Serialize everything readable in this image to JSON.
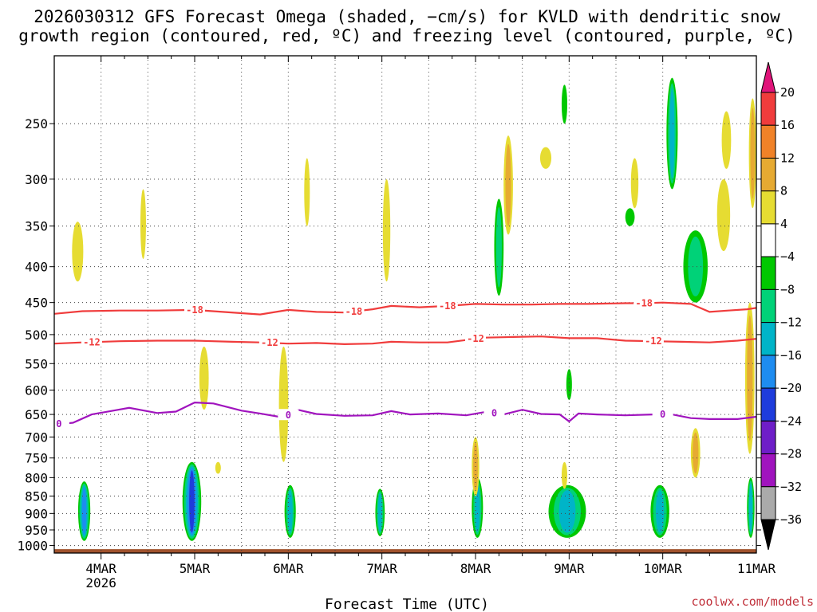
{
  "title": {
    "line1": "2026030312 GFS Forecast Omega (shaded, −cm/s) for KVLD with dendritic snow",
    "line2": "growth region (contoured, red, ºC) and freezing level (contoured, purple, ºC)"
  },
  "credit": "coolwx.com/models",
  "chart_data": {
    "type": "time-height cross section",
    "title": "2026030312 GFS Forecast Omega (shaded, −cm/s) for KVLD with dendritic snow growth region (contoured, red, ºC) and freezing level (contoured, purple, ºC)",
    "xlabel": "Forecast Time (UTC)",
    "ylabel": "",
    "x_range": [
      "2026-03-03T12",
      "2026-03-11T00"
    ],
    "x_ticks": [
      {
        "label": "4MAR",
        "sub": "2026",
        "day": 4
      },
      {
        "label": "5MAR",
        "sub": "",
        "day": 5
      },
      {
        "label": "6MAR",
        "sub": "",
        "day": 6
      },
      {
        "label": "7MAR",
        "sub": "",
        "day": 7
      },
      {
        "label": "8MAR",
        "sub": "",
        "day": 8
      },
      {
        "label": "9MAR",
        "sub": "",
        "day": 9
      },
      {
        "label": "10MAR",
        "sub": "",
        "day": 10
      },
      {
        "label": "11MAR",
        "sub": "",
        "day": 11
      }
    ],
    "y_scale": "log-pressure (hPa), reversed",
    "y_range": [
      1025,
      200
    ],
    "y_ticks": [
      250,
      300,
      350,
      400,
      450,
      500,
      550,
      600,
      650,
      700,
      750,
      800,
      850,
      900,
      950,
      1000
    ],
    "grid": true,
    "colorbar": {
      "placement": "right",
      "labels": [
        "20",
        "16",
        "12",
        "8",
        "4",
        "−4",
        "−8",
        "−12",
        "−16",
        "−20",
        "−24",
        "−28",
        "−32",
        "−36"
      ],
      "bins": [
        {
          "range": "above 20",
          "color": "#e0147a"
        },
        {
          "range": "16 to 20",
          "color": "#f03c3c"
        },
        {
          "range": "12 to 16",
          "color": "#f08228"
        },
        {
          "range": "8 to 12",
          "color": "#e6aa32"
        },
        {
          "range": "4 to 8",
          "color": "#e6dc32"
        },
        {
          "range": "-4 to 4",
          "color": "#ffffff"
        },
        {
          "range": "-8 to -4",
          "color": "#00c800"
        },
        {
          "range": "-12 to -8",
          "color": "#00d278"
        },
        {
          "range": "-16 to -12",
          "color": "#00b4c8"
        },
        {
          "range": "-20 to -16",
          "color": "#1e8cf0"
        },
        {
          "range": "-24 to -20",
          "color": "#1e3cdc"
        },
        {
          "range": "-28 to -24",
          "color": "#6e1ec8"
        },
        {
          "range": "-32 to -28",
          "color": "#a014be"
        },
        {
          "range": "-36 to -32",
          "color": "#aaaaaa"
        },
        {
          "range": "below -36",
          "color": "#000000"
        }
      ]
    },
    "contours": [
      {
        "level": "-18",
        "color": "#f03c3c",
        "label_days": [
          5.0,
          6.7,
          7.7,
          9.8
        ],
        "points": [
          [
            3.5,
            467
          ],
          [
            3.8,
            463
          ],
          [
            4.2,
            462
          ],
          [
            4.6,
            462
          ],
          [
            5.0,
            461
          ],
          [
            5.3,
            464
          ],
          [
            5.7,
            468
          ],
          [
            6.0,
            461
          ],
          [
            6.3,
            464
          ],
          [
            6.6,
            465
          ],
          [
            6.9,
            460
          ],
          [
            7.1,
            455
          ],
          [
            7.4,
            457
          ],
          [
            7.7,
            455
          ],
          [
            8.0,
            452
          ],
          [
            8.3,
            453
          ],
          [
            8.6,
            453
          ],
          [
            8.9,
            452
          ],
          [
            9.2,
            452
          ],
          [
            9.6,
            451
          ],
          [
            9.8,
            451
          ],
          [
            10.0,
            450
          ],
          [
            10.3,
            452
          ],
          [
            10.5,
            464
          ],
          [
            10.7,
            462
          ],
          [
            10.9,
            460
          ],
          [
            11.0,
            458
          ]
        ]
      },
      {
        "level": "-12",
        "color": "#f03c3c",
        "label_days": [
          3.9,
          5.8,
          8.0,
          9.9
        ],
        "points": [
          [
            3.5,
            515
          ],
          [
            3.8,
            513
          ],
          [
            4.2,
            511
          ],
          [
            4.6,
            510
          ],
          [
            5.0,
            510
          ],
          [
            5.4,
            512
          ],
          [
            5.7,
            513
          ],
          [
            6.0,
            515
          ],
          [
            6.3,
            514
          ],
          [
            6.6,
            516
          ],
          [
            6.9,
            515
          ],
          [
            7.1,
            512
          ],
          [
            7.4,
            513
          ],
          [
            7.7,
            513
          ],
          [
            7.9,
            509
          ],
          [
            8.1,
            505
          ],
          [
            8.4,
            504
          ],
          [
            8.7,
            503
          ],
          [
            9.0,
            506
          ],
          [
            9.3,
            506
          ],
          [
            9.6,
            510
          ],
          [
            9.9,
            511
          ],
          [
            10.2,
            512
          ],
          [
            10.5,
            513
          ],
          [
            10.8,
            510
          ],
          [
            11.0,
            507
          ]
        ]
      },
      {
        "level": "0",
        "color": "#a014be",
        "label_days": [
          3.55,
          6.0,
          8.2,
          10.0
        ],
        "points": [
          [
            3.5,
            672
          ],
          [
            3.7,
            668
          ],
          [
            3.9,
            650
          ],
          [
            4.1,
            643
          ],
          [
            4.3,
            636
          ],
          [
            4.6,
            647
          ],
          [
            4.8,
            644
          ],
          [
            5.0,
            625
          ],
          [
            5.2,
            627
          ],
          [
            5.5,
            642
          ],
          [
            5.7,
            648
          ],
          [
            5.9,
            655
          ],
          [
            6.0,
            652
          ],
          [
            6.1,
            640
          ],
          [
            6.3,
            649
          ],
          [
            6.6,
            653
          ],
          [
            6.9,
            652
          ],
          [
            7.1,
            643
          ],
          [
            7.3,
            650
          ],
          [
            7.6,
            648
          ],
          [
            7.9,
            652
          ],
          [
            8.1,
            645
          ],
          [
            8.3,
            650
          ],
          [
            8.5,
            640
          ],
          [
            8.7,
            649
          ],
          [
            8.9,
            650
          ],
          [
            9.0,
            665
          ],
          [
            9.1,
            648
          ],
          [
            9.3,
            650
          ],
          [
            9.6,
            652
          ],
          [
            9.9,
            650
          ],
          [
            10.1,
            650
          ],
          [
            10.3,
            658
          ],
          [
            10.5,
            660
          ],
          [
            10.8,
            660
          ],
          [
            11.0,
            655
          ]
        ]
      }
    ],
    "surface_band": {
      "color": "#a0522d",
      "from_hpa": 1025,
      "to_hpa": 1012
    },
    "shaded_features": [
      {
        "day": 3.82,
        "p_top": 810,
        "p_bot": 985,
        "half_width_days": 0.065,
        "levels": [
          "-4",
          "-8",
          "-12",
          "-16"
        ]
      },
      {
        "day": 4.97,
        "p_top": 760,
        "p_bot": 985,
        "half_width_days": 0.1,
        "levels": [
          "-4",
          "-8",
          "-12",
          "-16",
          "-20"
        ]
      },
      {
        "day": 6.02,
        "p_top": 820,
        "p_bot": 975,
        "half_width_days": 0.06,
        "levels": [
          "-4",
          "-8",
          "-12"
        ]
      },
      {
        "day": 6.98,
        "p_top": 830,
        "p_bot": 970,
        "half_width_days": 0.05,
        "levels": [
          "-4",
          "-8",
          "-12"
        ]
      },
      {
        "day": 8.02,
        "p_top": 800,
        "p_bot": 975,
        "half_width_days": 0.06,
        "levels": [
          "-4",
          "-8",
          "-12"
        ]
      },
      {
        "day": 8.98,
        "p_top": 820,
        "p_bot": 975,
        "half_width_days": 0.2,
        "levels": [
          "-4",
          "-8",
          "-12"
        ]
      },
      {
        "day": 9.97,
        "p_top": 820,
        "p_bot": 975,
        "half_width_days": 0.1,
        "levels": [
          "-4",
          "-8",
          "-12"
        ]
      },
      {
        "day": 10.94,
        "p_top": 800,
        "p_bot": 975,
        "half_width_days": 0.04,
        "levels": [
          "-4",
          "-8",
          "-12"
        ]
      },
      {
        "day": 10.1,
        "p_top": 215,
        "p_bot": 310,
        "half_width_days": 0.06,
        "levels": [
          "-4",
          "-8",
          "-12"
        ]
      },
      {
        "day": 10.35,
        "p_top": 355,
        "p_bot": 450,
        "half_width_days": 0.13,
        "levels": [
          "-4",
          "-8"
        ]
      },
      {
        "day": 8.25,
        "p_top": 320,
        "p_bot": 440,
        "half_width_days": 0.05,
        "levels": [
          "-4",
          "-8"
        ]
      },
      {
        "day": 8.95,
        "p_top": 220,
        "p_bot": 250,
        "half_width_days": 0.03,
        "levels": [
          "-4"
        ]
      },
      {
        "day": 9.0,
        "p_top": 560,
        "p_bot": 620,
        "half_width_days": 0.03,
        "levels": [
          "-4"
        ]
      },
      {
        "day": 9.65,
        "p_top": 330,
        "p_bot": 350,
        "half_width_days": 0.05,
        "levels": [
          "-4"
        ]
      },
      {
        "day": 3.75,
        "p_top": 345,
        "p_bot": 420,
        "half_width_days": 0.06,
        "levels": [
          "4"
        ]
      },
      {
        "day": 4.45,
        "p_top": 310,
        "p_bot": 390,
        "half_width_days": 0.03,
        "levels": [
          "4"
        ]
      },
      {
        "day": 5.1,
        "p_top": 520,
        "p_bot": 640,
        "half_width_days": 0.05,
        "levels": [
          "4"
        ]
      },
      {
        "day": 5.95,
        "p_top": 520,
        "p_bot": 760,
        "half_width_days": 0.05,
        "levels": [
          "4"
        ]
      },
      {
        "day": 6.2,
        "p_top": 280,
        "p_bot": 350,
        "half_width_days": 0.03,
        "levels": [
          "4"
        ]
      },
      {
        "day": 7.05,
        "p_top": 300,
        "p_bot": 420,
        "half_width_days": 0.04,
        "levels": [
          "4"
        ]
      },
      {
        "day": 8.35,
        "p_top": 260,
        "p_bot": 360,
        "half_width_days": 0.05,
        "levels": [
          "4",
          "8"
        ]
      },
      {
        "day": 8.75,
        "p_top": 270,
        "p_bot": 290,
        "half_width_days": 0.06,
        "levels": [
          "4"
        ]
      },
      {
        "day": 9.7,
        "p_top": 280,
        "p_bot": 330,
        "half_width_days": 0.04,
        "levels": [
          "4"
        ]
      },
      {
        "day": 10.65,
        "p_top": 300,
        "p_bot": 380,
        "half_width_days": 0.07,
        "levels": [
          "4"
        ]
      },
      {
        "day": 10.68,
        "p_top": 240,
        "p_bot": 290,
        "half_width_days": 0.05,
        "levels": [
          "4"
        ]
      },
      {
        "day": 10.35,
        "p_top": 680,
        "p_bot": 800,
        "half_width_days": 0.05,
        "levels": [
          "4",
          "8"
        ]
      },
      {
        "day": 10.96,
        "p_top": 230,
        "p_bot": 330,
        "half_width_days": 0.04,
        "levels": [
          "4",
          "8"
        ]
      },
      {
        "day": 10.93,
        "p_top": 450,
        "p_bot": 740,
        "half_width_days": 0.05,
        "levels": [
          "4",
          "8"
        ]
      },
      {
        "day": 8.0,
        "p_top": 700,
        "p_bot": 850,
        "half_width_days": 0.04,
        "levels": [
          "4",
          "8"
        ]
      },
      {
        "day": 8.95,
        "p_top": 760,
        "p_bot": 830,
        "half_width_days": 0.03,
        "levels": [
          "4"
        ]
      },
      {
        "day": 5.25,
        "p_top": 760,
        "p_bot": 790,
        "half_width_days": 0.03,
        "levels": [
          "4"
        ]
      }
    ]
  }
}
